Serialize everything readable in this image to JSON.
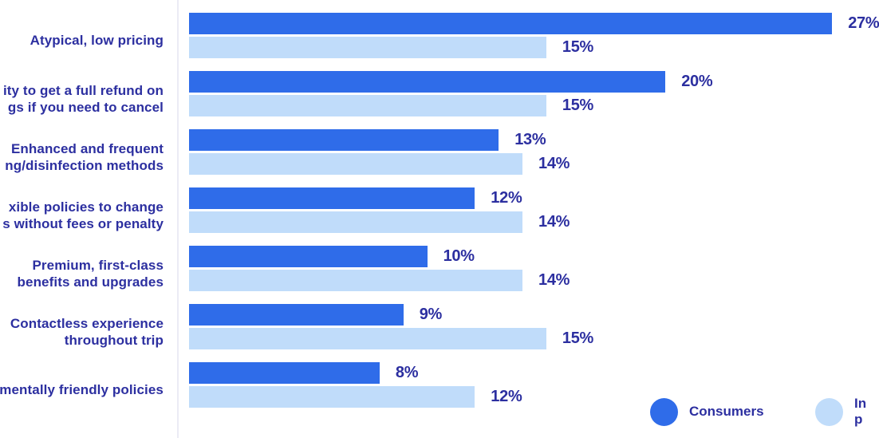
{
  "colors": {
    "consumers_bar": "#2f6ce9",
    "industry_bar": "#c0dcfa",
    "text": "#2c2fa0",
    "axis_line": "#ebebf5",
    "background": "#ffffff"
  },
  "chart_data": {
    "type": "bar",
    "orientation": "horizontal",
    "title": "",
    "xlabel": "",
    "ylabel": "",
    "xlim": [
      0,
      28
    ],
    "grid": false,
    "legend_position": "bottom-right",
    "categories": [
      {
        "lines": [
          "Atypical, low pricing"
        ]
      },
      {
        "lines": [
          "ity to get a full refund on",
          "gs if you need to cancel"
        ]
      },
      {
        "lines": [
          "Enhanced and frequent",
          "ng/disinfection methods"
        ]
      },
      {
        "lines": [
          "xible policies to change",
          "s without fees or penalty"
        ]
      },
      {
        "lines": [
          "Premium, first-class",
          "benefits and upgrades"
        ]
      },
      {
        "lines": [
          "Contactless experience",
          "throughout trip"
        ]
      },
      {
        "lines": [
          "mentally friendly policies"
        ]
      }
    ],
    "series": [
      {
        "name_lines": [
          "Consumers"
        ],
        "color": "#2f6ce9",
        "values": [
          27,
          20,
          13,
          12,
          10,
          9,
          8
        ],
        "labels": [
          "27%",
          "20%",
          "13%",
          "12%",
          "10%",
          "9%",
          "8%"
        ]
      },
      {
        "name_lines": [
          "In",
          "p"
        ],
        "color": "#c0dcfa",
        "values": [
          15,
          15,
          14,
          14,
          14,
          15,
          12
        ],
        "labels": [
          "15%",
          "15%",
          "14%",
          "14%",
          "14%",
          "15%",
          "12%"
        ]
      }
    ]
  },
  "legend": {
    "items": [
      {
        "lines": [
          "Consumers"
        ],
        "color": "#2f6ce9"
      },
      {
        "lines": [
          "In",
          "p"
        ],
        "color": "#c0dcfa"
      }
    ]
  }
}
